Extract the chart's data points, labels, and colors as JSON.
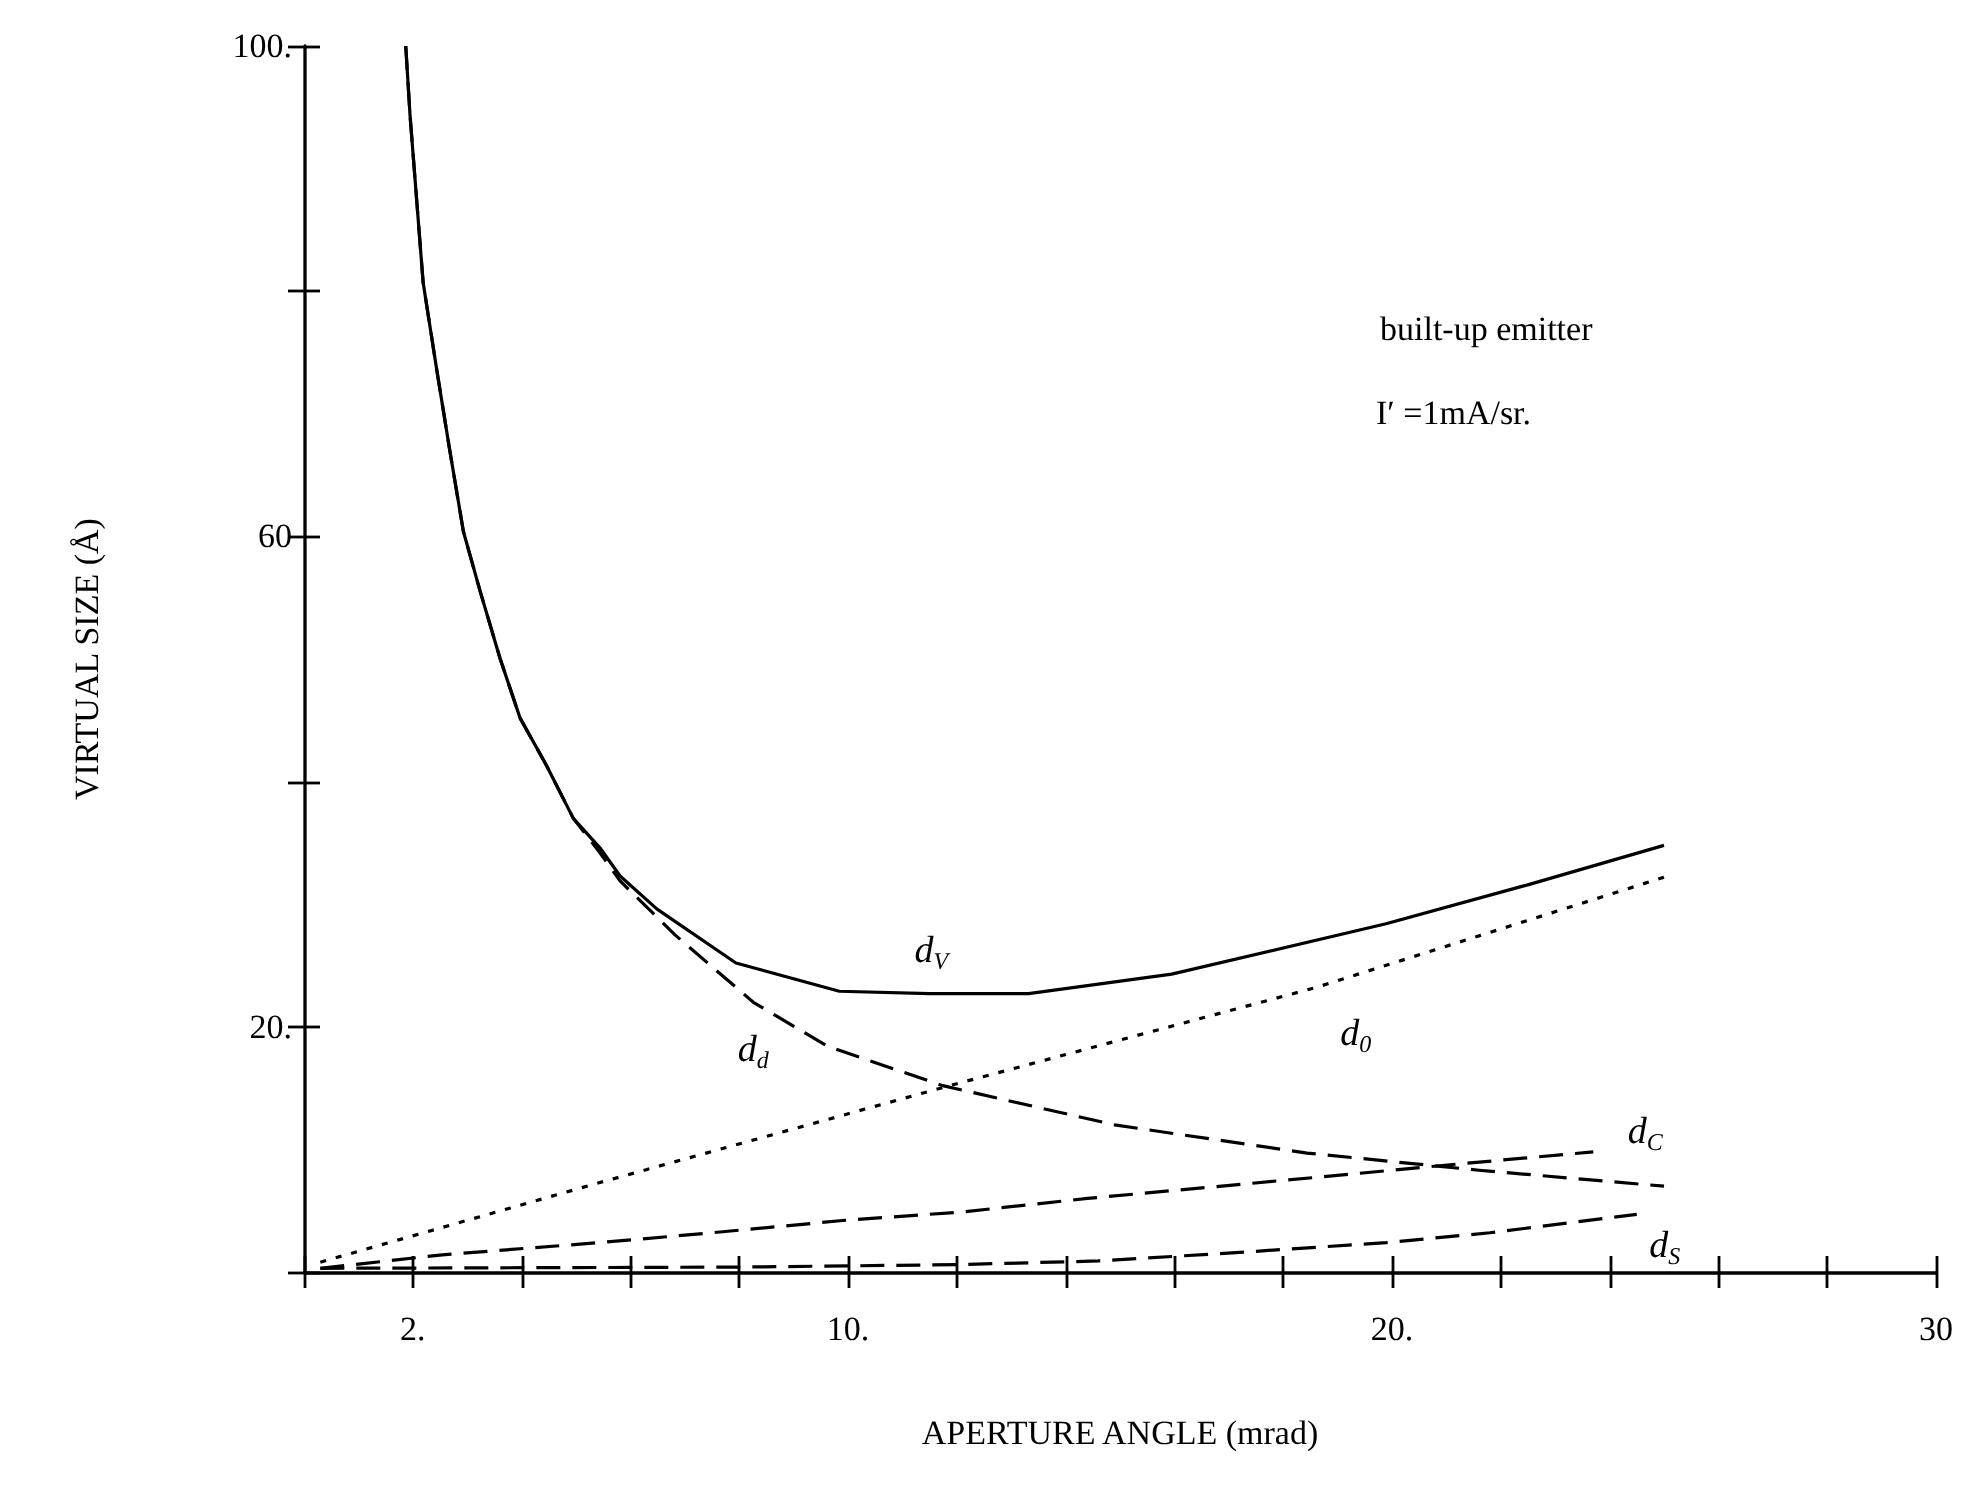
{
  "chart_data": {
    "type": "line",
    "xlabel": "APERTURE ANGLE (mrad)",
    "ylabel": "VIRTUAL SIZE (Å)",
    "annotations": [
      "built-up emitter",
      "I′ =1mA/sr."
    ],
    "xlim": [
      0,
      30
    ],
    "xticks": [
      {
        "value": 0,
        "label": null
      },
      {
        "value": 2,
        "label": "2."
      },
      {
        "value": 4,
        "label": null
      },
      {
        "value": 6,
        "label": null
      },
      {
        "value": 8,
        "label": null
      },
      {
        "value": 10,
        "label": "10."
      },
      {
        "value": 12,
        "label": null
      },
      {
        "value": 14,
        "label": null
      },
      {
        "value": 16,
        "label": null
      },
      {
        "value": 18,
        "label": null
      },
      {
        "value": 20,
        "label": "20."
      },
      {
        "value": 22,
        "label": null
      },
      {
        "value": 24,
        "label": null
      },
      {
        "value": 26,
        "label": null
      },
      {
        "value": 28,
        "label": null
      },
      30
    ],
    "ylim": [
      0,
      100
    ],
    "yticks": [
      {
        "value": 0,
        "label": null
      },
      {
        "value": 20,
        "label": "20."
      },
      {
        "value": 40,
        "label": null
      },
      60,
      {
        "value": 80,
        "label": null
      },
      {
        "value": 100,
        "label": "100."
      }
    ],
    "grid": false,
    "legend": false,
    "marker": "none",
    "series": [
      {
        "name": "d$_{V}$",
        "color": "#000000",
        "line_style": "solid",
        "x": [
          1.87,
          1.95,
          2.19,
          2.44,
          2.68,
          2.93,
          3.24,
          3.6,
          3.97,
          4.46,
          4.95,
          5.44,
          5.81,
          6.49,
          7.94,
          9.84,
          11.5,
          13.32,
          15.95,
          19.89,
          22.51,
          25.0
        ],
        "values": [
          100,
          94.3,
          80.7,
          73.6,
          67.0,
          60.4,
          55.5,
          50.1,
          45.2,
          41.3,
          37.0,
          34.6,
          32.3,
          29.6,
          25.2,
          22.9,
          22.7,
          22.7,
          24.3,
          28.4,
          31.6,
          34.8
        ]
      },
      {
        "name": "d$_{d}$",
        "color": "#000000",
        "line_style": "dashed",
        "x": [
          1.87,
          1.95,
          2.19,
          2.44,
          2.68,
          2.93,
          3.24,
          3.6,
          3.97,
          4.46,
          4.95,
          5.44,
          5.81,
          6.82,
          8.26,
          9.63,
          11.74,
          14.9,
          18.44,
          21.6,
          25.0
        ],
        "values": [
          100,
          94.3,
          80.7,
          73.6,
          67.0,
          60.4,
          55.5,
          50.1,
          45.2,
          41.3,
          37.0,
          34.2,
          31.9,
          27.5,
          22.0,
          18.4,
          15.2,
          12.0,
          9.7,
          8.3,
          7.0
        ]
      },
      {
        "name": "d$_{0}$",
        "color": "#000000",
        "line_style": "dotted",
        "x": [
          0.3,
          5.44,
          11.87,
          18.6,
          25.0
        ],
        "values": [
          0.8,
          7.3,
          15.2,
          23.2,
          32.2
        ]
      },
      {
        "name": "d$_{C}$",
        "color": "#000000",
        "line_style": "dashed",
        "x": [
          0.3,
          2.54,
          5.44,
          7.5,
          9.9,
          12.1,
          14.4,
          16.6,
          18.8,
          21.2,
          23.7
        ],
        "values": [
          0.3,
          1.4,
          2.4,
          3.2,
          4.2,
          4.9,
          6.0,
          6.9,
          7.8,
          8.8,
          9.8
        ]
      },
      {
        "name": "d$_{S}$",
        "color": "#000000",
        "line_style": "dashed",
        "x": [
          0.3,
          8.0,
          12.0,
          14.6,
          17.2,
          19.9,
          21.8,
          24.5
        ],
        "values": [
          0.3,
          0.4,
          0.6,
          0.9,
          1.6,
          2.4,
          3.2,
          4.7
        ]
      }
    ]
  }
}
